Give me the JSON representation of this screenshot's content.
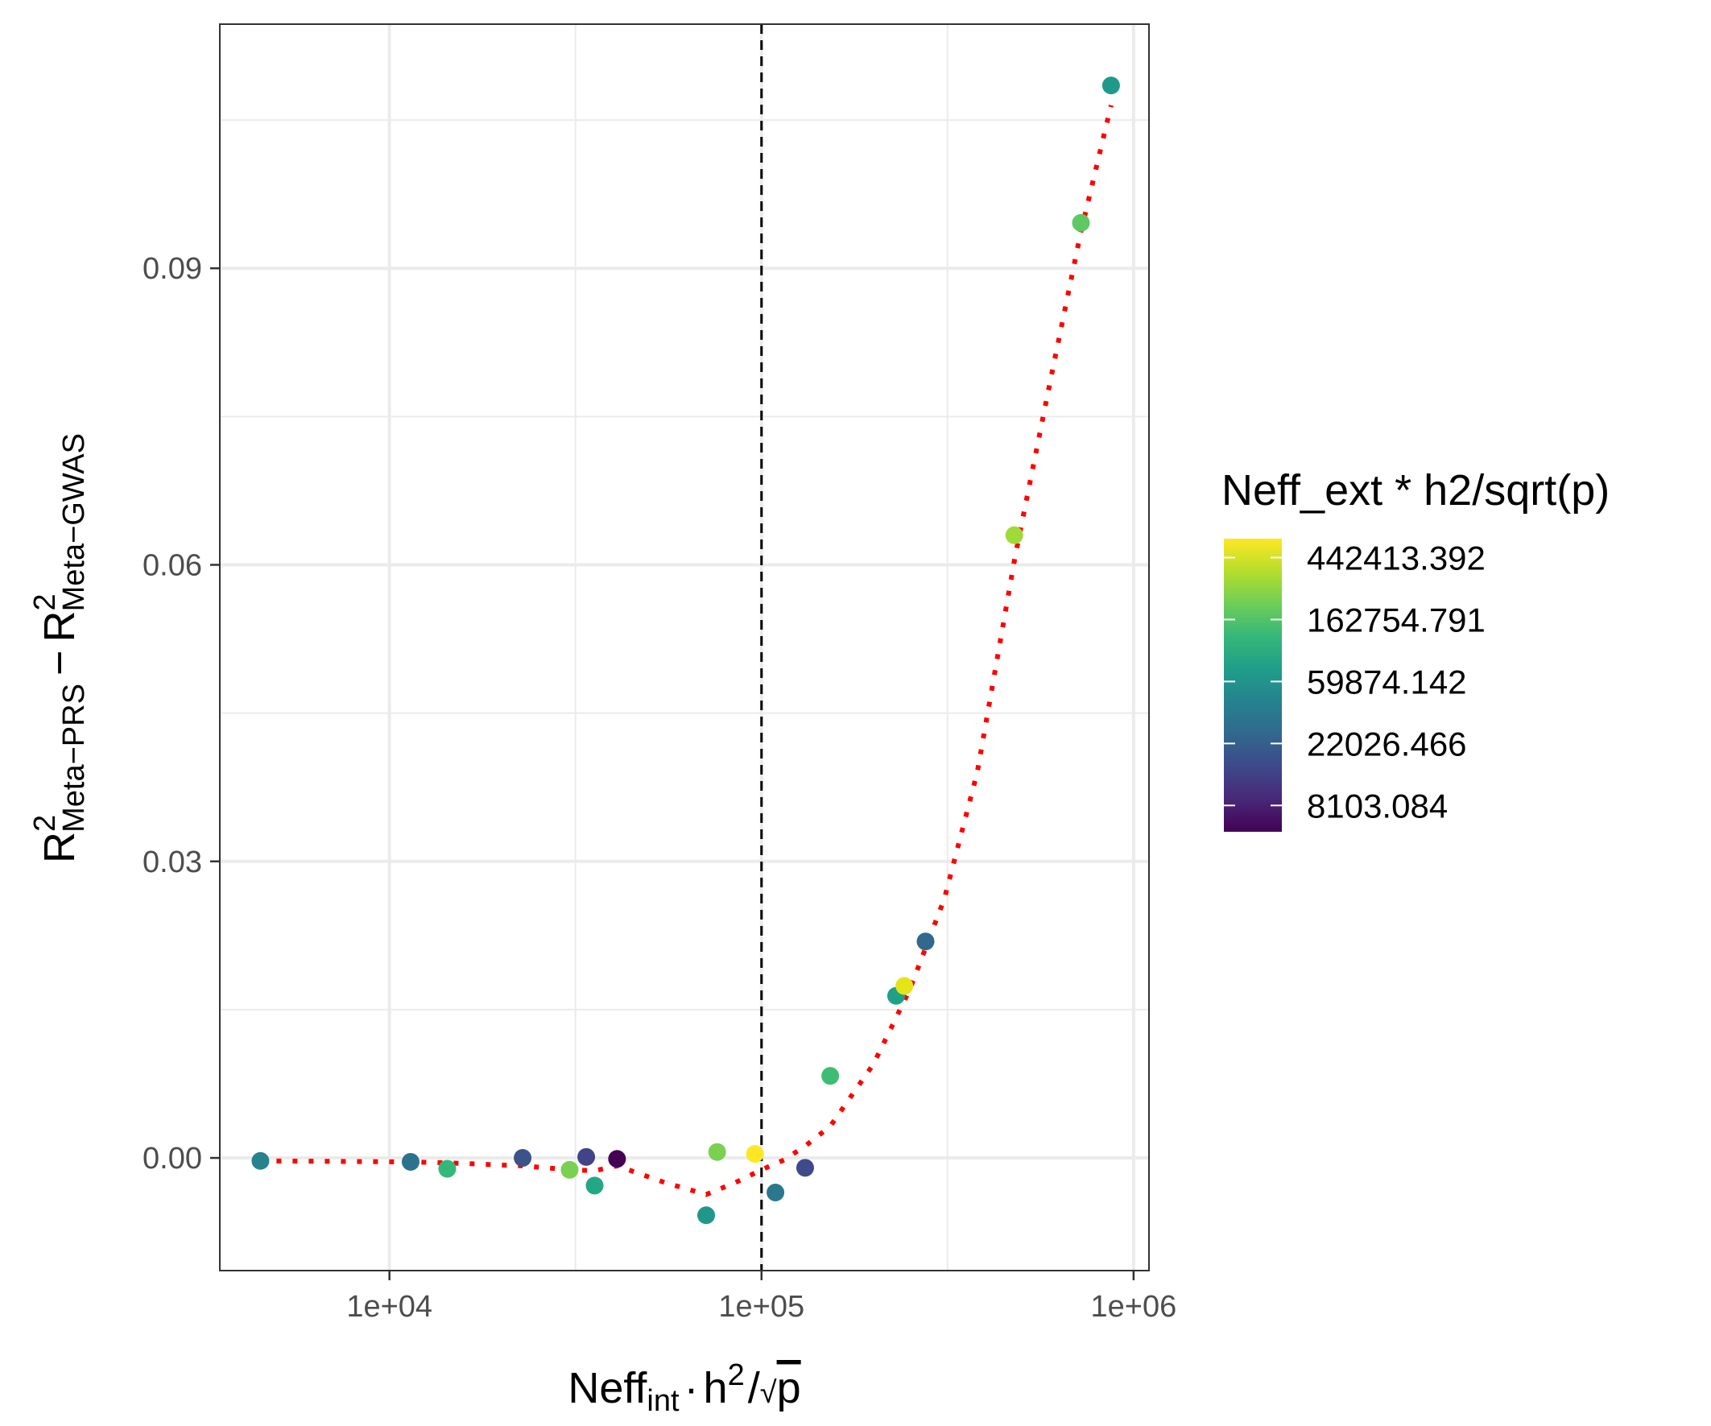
{
  "chart_data": {
    "type": "scatter",
    "title": "",
    "x_scale": "log10",
    "xlim": [
      3500,
      1100000
    ],
    "ylim": [
      -0.0114,
      0.1147
    ],
    "x_ticks": [
      10000,
      100000,
      1000000
    ],
    "x_tick_labels": [
      "1e+04",
      "1e+05",
      "1e+06"
    ],
    "y_ticks": [
      0,
      0.03,
      0.06,
      0.09
    ],
    "y_tick_labels": [
      "0.00",
      "0.03",
      "0.06",
      "0.09"
    ],
    "xlabel": {
      "main": "Neff",
      "sub": "int",
      "rest": "h",
      "sup": "2",
      "slash": "/",
      "root": "√",
      "p": "p"
    },
    "ylabel": {
      "r1": "R",
      "sup1": "2",
      "sub1": "Meta−PRS",
      "minus": "−",
      "r2": "R",
      "sup2": "2",
      "sub2": "Meta−GWAS"
    },
    "reference_line_x": 100000,
    "grid": true,
    "points": [
      {
        "x": 4500,
        "y": -0.0003,
        "color": "#26828e"
      },
      {
        "x": 11400,
        "y": -0.0004,
        "color": "#2c728e"
      },
      {
        "x": 14300,
        "y": -0.0011,
        "color": "#35b779"
      },
      {
        "x": 22800,
        "y": 0.0,
        "color": "#3b528b"
      },
      {
        "x": 30500,
        "y": -0.0012,
        "color": "#7ad151"
      },
      {
        "x": 33800,
        "y": 0.0001,
        "color": "#414487"
      },
      {
        "x": 35600,
        "y": -0.0028,
        "color": "#22a884"
      },
      {
        "x": 40900,
        "y": -0.0001,
        "color": "#440154"
      },
      {
        "x": 71000,
        "y": -0.0058,
        "color": "#1f988b"
      },
      {
        "x": 76000,
        "y": 0.0006,
        "color": "#7ad151"
      },
      {
        "x": 96000,
        "y": 0.0004,
        "color": "#fde725"
      },
      {
        "x": 109000,
        "y": -0.0035,
        "color": "#2a788e"
      },
      {
        "x": 131000,
        "y": -0.001,
        "color": "#3e4a89"
      },
      {
        "x": 153000,
        "y": 0.0083,
        "color": "#3fbc73"
      },
      {
        "x": 230000,
        "y": 0.0164,
        "color": "#1fa187"
      },
      {
        "x": 242000,
        "y": 0.0174,
        "color": "#e5e419"
      },
      {
        "x": 276000,
        "y": 0.0219,
        "color": "#31688e"
      },
      {
        "x": 478000,
        "y": 0.063,
        "color": "#a0da39"
      },
      {
        "x": 722000,
        "y": 0.0946,
        "color": "#5ec962"
      },
      {
        "x": 870000,
        "y": 0.1085,
        "color": "#1f9a8a"
      }
    ],
    "trend_line": {
      "color": "#ff0000",
      "style": "dotted",
      "x": [
        4500,
        11400,
        14300,
        22800,
        30500,
        35600,
        40900,
        55000,
        71000,
        85000,
        100000,
        115000,
        131000,
        153000,
        200000,
        250000,
        310000,
        380000,
        480000,
        600000,
        720000,
        870000
      ],
      "y": [
        -0.0003,
        -0.0004,
        -0.0005,
        -0.0008,
        -0.0012,
        -0.0013,
        -0.0008,
        -0.0025,
        -0.0037,
        -0.0025,
        -0.0012,
        -0.0002,
        0.0012,
        0.0032,
        0.0095,
        0.017,
        0.0262,
        0.039,
        0.0608,
        0.079,
        0.0935,
        0.1065
      ]
    },
    "legend": {
      "title": "Neff_ext * h2/sqrt(p)",
      "placement": "right",
      "breaks": [
        8103.084,
        22026.466,
        59874.142,
        162754.791,
        442413.392
      ],
      "labels": [
        "442413.392",
        "162754.791",
        "59874.142",
        "22026.466",
        "8103.084"
      ],
      "range": [
        5300,
        600000
      ],
      "colors": [
        "#440154",
        "#482878",
        "#3e4989",
        "#31688e",
        "#26828e",
        "#1f9e89",
        "#35b779",
        "#6ece58",
        "#b5de2b",
        "#fde725"
      ]
    }
  }
}
